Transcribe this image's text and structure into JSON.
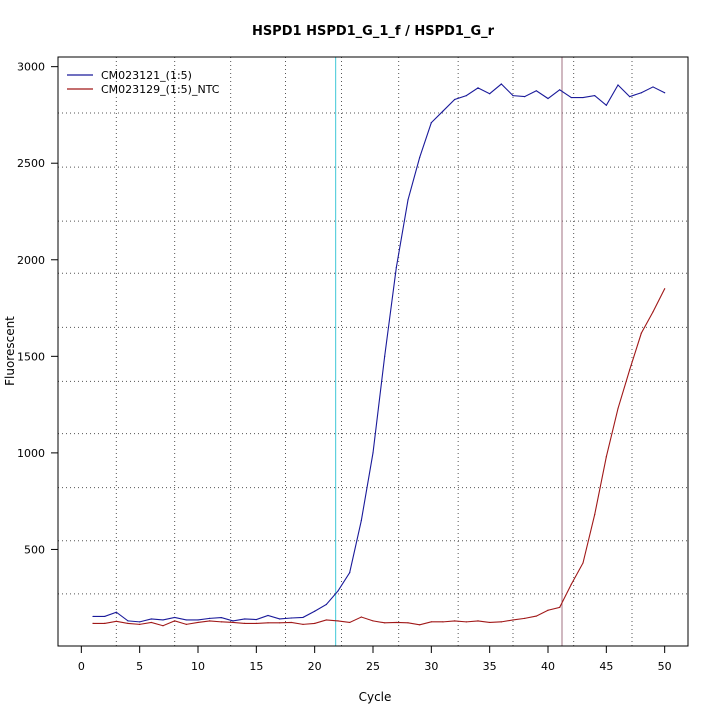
{
  "chart_data": {
    "type": "line",
    "title": "HSPD1  HSPD1_G_1_f / HSPD1_G_r",
    "xlabel": "Cycle",
    "ylabel": "Fluorescent",
    "xlim": [
      -2,
      52
    ],
    "ylim": [
      0,
      3050
    ],
    "x_ticks": [
      "0",
      "5",
      "10",
      "15",
      "20",
      "25",
      "30",
      "35",
      "40",
      "45",
      "50"
    ],
    "y_ticks": [
      "500",
      "1000",
      "1500",
      "2000",
      "2500",
      "3000"
    ],
    "x_grid": [
      3,
      8,
      12.8,
      17.5,
      22.3,
      27.2,
      32.3,
      37,
      42.2,
      47.2
    ],
    "y_grid": [
      270,
      545,
      820,
      1100,
      1370,
      1650,
      1930,
      2200,
      2480,
      2760
    ],
    "grid": true,
    "grid_style": "dotted",
    "legend_position": "top-left",
    "threshold_lines": [
      {
        "x": 21.8,
        "color": "#40c8d8"
      },
      {
        "x": 41.2,
        "color": "#a07080"
      }
    ],
    "x": [
      1,
      2,
      3,
      4,
      5,
      6,
      7,
      8,
      9,
      10,
      11,
      12,
      13,
      14,
      15,
      16,
      17,
      18,
      19,
      20,
      21,
      22,
      23,
      24,
      25,
      26,
      27,
      28,
      29,
      30,
      31,
      32,
      33,
      34,
      35,
      36,
      37,
      38,
      39,
      40,
      41,
      42,
      43,
      44,
      45,
      46,
      47,
      48,
      49,
      50
    ],
    "series": [
      {
        "name": "CM023121_(1:5)",
        "color": "#1a1a9a",
        "values": [
          153,
          153,
          175,
          130,
          125,
          140,
          135,
          148,
          135,
          135,
          143,
          147,
          130,
          140,
          137,
          158,
          140,
          145,
          148,
          180,
          215,
          285,
          380,
          650,
          1000,
          1500,
          1960,
          2310,
          2530,
          2710,
          2770,
          2830,
          2850,
          2890,
          2860,
          2910,
          2850,
          2845,
          2875,
          2835,
          2880,
          2840,
          2840,
          2850,
          2800,
          2905,
          2845,
          2865,
          2895,
          2865
        ]
      },
      {
        "name": "CM023129_(1:5)_NTC",
        "color": "#a01818",
        "values": [
          117,
          117,
          128,
          117,
          112,
          122,
          105,
          130,
          112,
          122,
          130,
          125,
          122,
          117,
          117,
          120,
          120,
          122,
          112,
          117,
          135,
          130,
          122,
          150,
          130,
          120,
          122,
          120,
          110,
          125,
          125,
          130,
          125,
          130,
          122,
          125,
          135,
          143,
          155,
          185,
          200,
          320,
          430,
          680,
          980,
          1230,
          1430,
          1620,
          1730,
          1850
        ]
      }
    ]
  }
}
